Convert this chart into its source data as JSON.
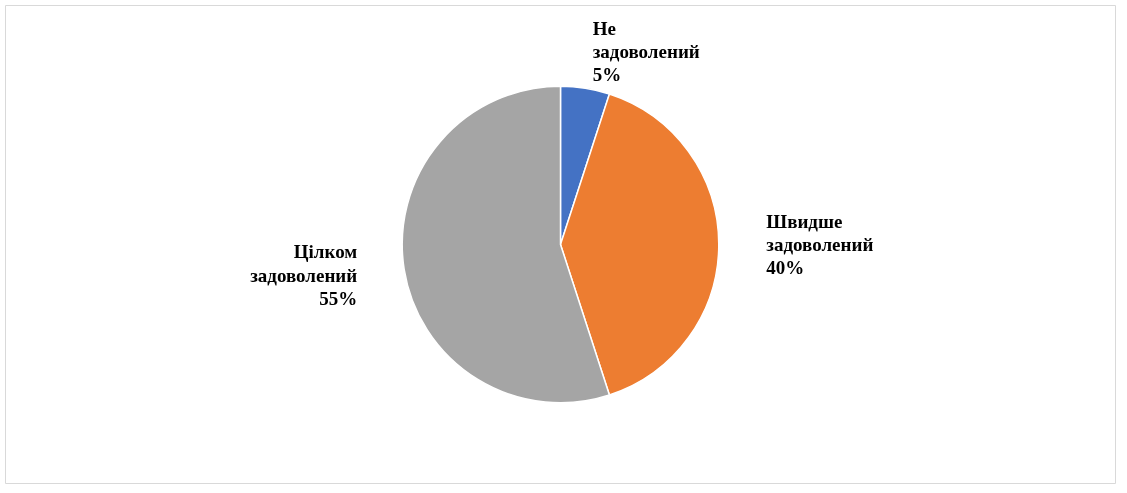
{
  "chart_data": {
    "type": "pie",
    "categories": [
      "Не задоволений",
      "Швидше задоволений",
      "Цілком задоволений"
    ],
    "values": [
      5,
      40,
      55
    ],
    "colors": [
      "#4472c4",
      "#ed7d31",
      "#a5a5a5"
    ],
    "value_labels": [
      "5%",
      "40%",
      "55%"
    ],
    "legend": false
  }
}
